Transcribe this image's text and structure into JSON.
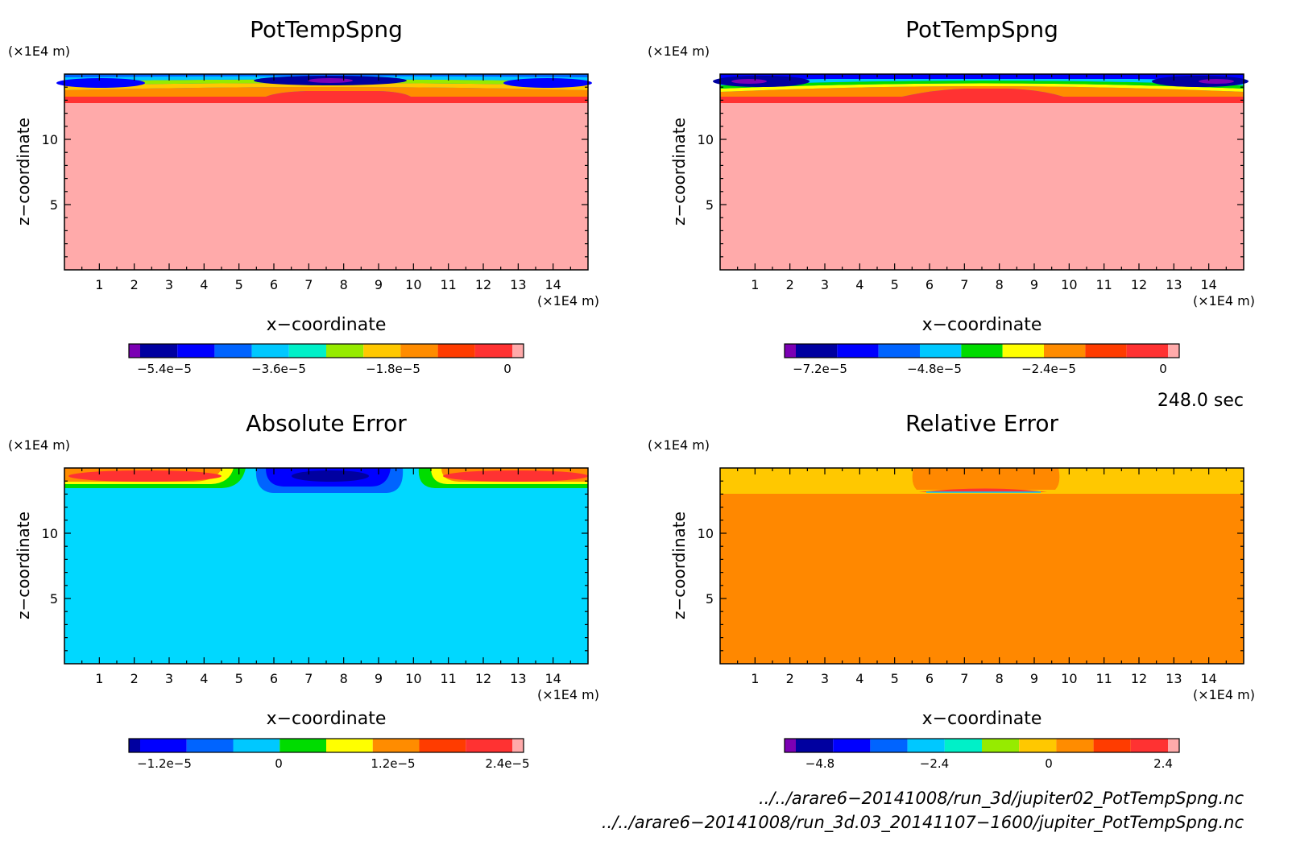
{
  "chart_data": [
    {
      "type": "heatmap",
      "title": "PotTempSpng",
      "xlabel": "x−coordinate",
      "ylabel": "z−coordinate",
      "x_unit": "(×1E4 m)",
      "y_unit": "(×1E4 m)",
      "xlim": [
        0,
        15
      ],
      "ylim": [
        0,
        15
      ],
      "x_ticks": [
        "1",
        "2",
        "3",
        "4",
        "5",
        "6",
        "7",
        "8",
        "9",
        "10",
        "11",
        "12",
        "13",
        "14"
      ],
      "y_ticks": [
        "5",
        "10"
      ],
      "colorbar": {
        "ticks": [
          "−5.4e−5",
          "−3.6e−5",
          "−1.8e−5",
          "0"
        ],
        "colors": [
          "#7b00b4",
          "#0000a0",
          "#0000ff",
          "#0064ff",
          "#00c8ff",
          "#00f0c8",
          "#96eb00",
          "#ffc800",
          "#ff8c00",
          "#ff3c00",
          "#ff3232",
          "#ffaaaa"
        ]
      }
    },
    {
      "type": "heatmap",
      "title": "PotTempSpng",
      "xlabel": "x−coordinate",
      "ylabel": "z−coordinate",
      "x_unit": "(×1E4 m)",
      "y_unit": "(×1E4 m)",
      "xlim": [
        0,
        15
      ],
      "ylim": [
        0,
        15
      ],
      "x_ticks": [
        "1",
        "2",
        "3",
        "4",
        "5",
        "6",
        "7",
        "8",
        "9",
        "10",
        "11",
        "12",
        "13",
        "14"
      ],
      "y_ticks": [
        "5",
        "10"
      ],
      "colorbar": {
        "ticks": [
          "−7.2e−5",
          "−4.8e−5",
          "−2.4e−5",
          "0"
        ],
        "colors": [
          "#7b00b4",
          "#0000a0",
          "#0000ff",
          "#0064ff",
          "#00c8ff",
          "#00dc00",
          "#ffff00",
          "#ff8c00",
          "#ff3c00",
          "#ff3232",
          "#ffaaaa"
        ]
      }
    },
    {
      "type": "heatmap",
      "title": "Absolute Error",
      "xlabel": "x−coordinate",
      "ylabel": "z−coordinate",
      "x_unit": "(×1E4 m)",
      "y_unit": "(×1E4 m)",
      "xlim": [
        0,
        15
      ],
      "ylim": [
        0,
        15
      ],
      "x_ticks": [
        "1",
        "2",
        "3",
        "4",
        "5",
        "6",
        "7",
        "8",
        "9",
        "10",
        "11",
        "12",
        "13",
        "14"
      ],
      "y_ticks": [
        "5",
        "10"
      ],
      "colorbar": {
        "ticks": [
          "−1.2e−5",
          "0",
          "1.2e−5",
          "2.4e−5"
        ],
        "colors": [
          "#0000a0",
          "#0000ff",
          "#0064ff",
          "#00c8ff",
          "#00dc00",
          "#ffff00",
          "#ff8c00",
          "#ff3c00",
          "#ff3232",
          "#ffaaaa"
        ]
      }
    },
    {
      "type": "heatmap",
      "title": "Relative Error",
      "xlabel": "x−coordinate",
      "ylabel": "z−coordinate",
      "x_unit": "(×1E4 m)",
      "y_unit": "(×1E4 m)",
      "xlim": [
        0,
        15
      ],
      "ylim": [
        0,
        15
      ],
      "x_ticks": [
        "1",
        "2",
        "3",
        "4",
        "5",
        "6",
        "7",
        "8",
        "9",
        "10",
        "11",
        "12",
        "13",
        "14"
      ],
      "y_ticks": [
        "5",
        "10"
      ],
      "colorbar": {
        "ticks": [
          "−4.8",
          "−2.4",
          "0",
          "2.4"
        ],
        "colors": [
          "#7b00b4",
          "#0000a0",
          "#0000ff",
          "#0064ff",
          "#00c8ff",
          "#00f0c8",
          "#96eb00",
          "#ffc800",
          "#ff8c00",
          "#ff3c00",
          "#ff3232",
          "#ffaaaa"
        ]
      }
    }
  ],
  "time_label": "248.0 sec",
  "file_paths": [
    "../../arare6−20141008/run_3d/jupiter02_PotTempSpng.nc",
    "../../arare6−20141008/run_3d.03_20141107−1600/jupiter_PotTempSpng.nc"
  ],
  "field_colors": {
    "p1_base": "#ffaaaa",
    "p2_base": "#ffaaaa",
    "p3_base": "#00d8ff",
    "p4_base": "#ff8800",
    "p4_top": "#ffc800"
  }
}
